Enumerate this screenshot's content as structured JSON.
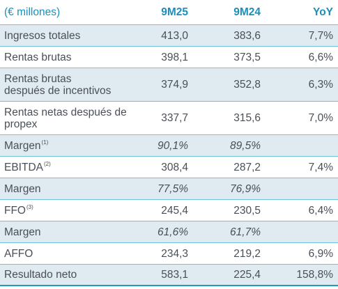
{
  "header": {
    "label": "(€ millones)",
    "col1": "9M25",
    "col2": "9M24",
    "col3": "YoY"
  },
  "rows": [
    {
      "label_line1": "Ingresos totales",
      "label_line2": "",
      "sup": "",
      "v1": "413,0",
      "v2": "383,6",
      "v3": "7,7%",
      "italic": false
    },
    {
      "label_line1": "Rentas brutas",
      "label_line2": "",
      "sup": "",
      "v1": "398,1",
      "v2": "373,5",
      "v3": "6,6%",
      "italic": false
    },
    {
      "label_line1": "Rentas brutas",
      "label_line2": "después de incentivos",
      "sup": "",
      "v1": "374,9",
      "v2": "352,8",
      "v3": "6,3%",
      "italic": false
    },
    {
      "label_line1": "Rentas netas después de",
      "label_line2": "propex",
      "sup": "",
      "v1": "337,7",
      "v2": "315,6",
      "v3": "7,0%",
      "italic": false
    },
    {
      "label_line1": "Margen",
      "label_line2": "",
      "sup": "(1)",
      "v1": "90,1%",
      "v2": "89,5%",
      "v3": "",
      "italic": true
    },
    {
      "label_line1": "EBITDA",
      "label_line2": "",
      "sup": "(2)",
      "v1": "308,4",
      "v2": "287,2",
      "v3": "7,4%",
      "italic": false
    },
    {
      "label_line1": "Margen",
      "label_line2": "",
      "sup": "",
      "v1": "77,5%",
      "v2": "76,9%",
      "v3": "",
      "italic": true
    },
    {
      "label_line1": "FFO",
      "label_line2": "",
      "sup": "(3)",
      "v1": "245,4",
      "v2": "230,5",
      "v3": "6,4%",
      "italic": false
    },
    {
      "label_line1": "Margen",
      "label_line2": "",
      "sup": "",
      "v1": "61,6%",
      "v2": "61,7%",
      "v3": "",
      "italic": true
    },
    {
      "label_line1": "AFFO",
      "label_line2": "",
      "sup": "",
      "v1": "234,3",
      "v2": "219,2",
      "v3": "6,9%",
      "italic": false
    },
    {
      "label_line1": "Resultado neto",
      "label_line2": "",
      "sup": "",
      "v1": "583,1",
      "v2": "225,4",
      "v3": "158,8%",
      "italic": false
    }
  ],
  "colors": {
    "header_text": "#1a8fbd",
    "row_shade": "#dfeaf1",
    "divider": "#6fc3d8",
    "body_text": "#4a4f57"
  }
}
